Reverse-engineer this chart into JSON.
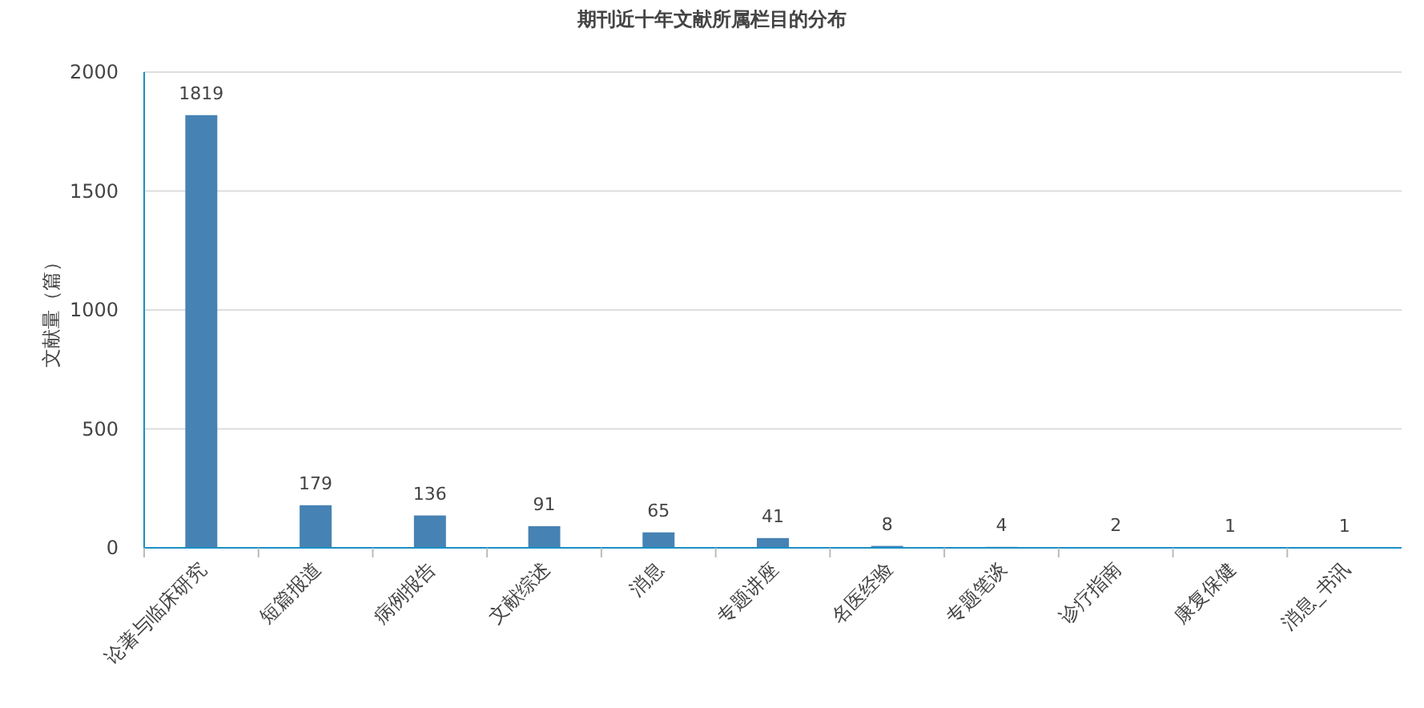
{
  "chart_data": {
    "type": "bar",
    "title": "期刊近十年文献所属栏目的分布",
    "ylabel": "文献量（篇）",
    "categories": [
      "论著与临床研究",
      "短篇报道",
      "病例报告",
      "文献综述",
      "消息",
      "专题讲座",
      "名医经验",
      "专题笔谈",
      "诊疗指南",
      "康复保健",
      "消息_书讯"
    ],
    "values": [
      1819,
      179,
      136,
      91,
      65,
      41,
      8,
      4,
      2,
      1,
      1
    ],
    "color": "#4682b4",
    "ylim": [
      0,
      2000
    ],
    "yticks": [
      0,
      500,
      1000,
      1500,
      2000
    ],
    "grid": "y",
    "data_labels": true
  }
}
